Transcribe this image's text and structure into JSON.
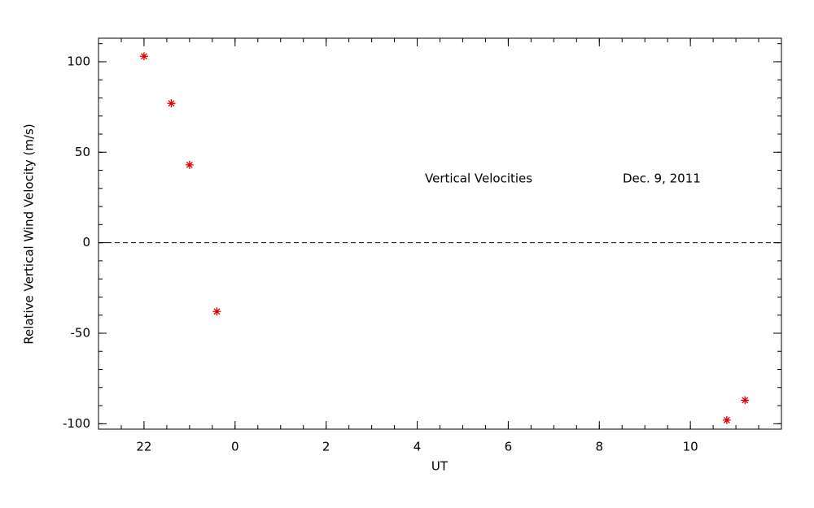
{
  "chart_data": {
    "type": "scatter",
    "xlabel": "UT",
    "ylabel": "Relative Vertical Wind Velocity (m/s)",
    "annotations": [
      "Vertical Velocities",
      "Dec. 9, 2011"
    ],
    "x": [
      -2,
      -1.4,
      -1.0,
      -0.4,
      10.8,
      11.2
    ],
    "values": [
      103,
      77,
      43,
      -38,
      -98,
      -87
    ],
    "color": "#e00000",
    "marker": "asterisk",
    "reference_line": 0,
    "xlim": [
      -3,
      12
    ],
    "ylim": [
      -103,
      113
    ],
    "xticks": [
      {
        "value": -2,
        "label": "22"
      },
      0,
      2,
      4,
      6,
      8,
      10
    ],
    "yticks": [
      -100,
      -50,
      0,
      50,
      100
    ],
    "xminorticks": [
      -3,
      -2.5,
      -2,
      -1.5,
      -1,
      -0.5,
      0,
      0.5,
      1,
      1.5,
      2,
      2.5,
      3,
      3.5,
      4,
      4.5,
      5,
      5.5,
      6,
      6.5,
      7,
      7.5,
      8,
      8.5,
      9,
      9.5,
      10,
      10.5,
      11,
      11.5,
      12
    ],
    "yminorticks": [
      -100,
      -90,
      -80,
      -70,
      -60,
      -50,
      -40,
      -30,
      -20,
      -10,
      0,
      10,
      20,
      30,
      40,
      50,
      60,
      70,
      80,
      90,
      100,
      110
    ]
  }
}
